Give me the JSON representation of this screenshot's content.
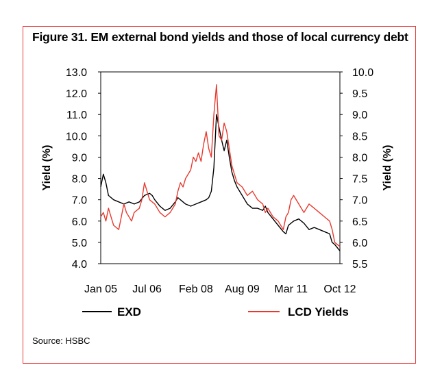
{
  "figure": {
    "title": "Figure 31.  EM external bond yields and those of local currency debt",
    "source": "Source: HSBC"
  },
  "chart_data": {
    "type": "line",
    "ylabel_left": "Yield (%)",
    "ylabel_right": "Yield (%)",
    "ylim_left": [
      4.0,
      13.0
    ],
    "ylim_right": [
      5.5,
      10.0
    ],
    "yticks_left": [
      "13.0",
      "12.0",
      "11.0",
      "10.0",
      "9.0",
      "8.0",
      "7.0",
      "6.0",
      "5.0",
      "4.0"
    ],
    "yticks_right": [
      "10.0",
      "9.5",
      "9.0",
      "8.5",
      "8.0",
      "7.5",
      "7.0",
      "6.5",
      "6.0",
      "5.5"
    ],
    "xlim": [
      "2005-01",
      "2012-10"
    ],
    "xticks": [
      {
        "label": "Jan 05",
        "date": "2005-01"
      },
      {
        "label": "Jul 06",
        "date": "2006-07"
      },
      {
        "label": "Feb 08",
        "date": "2008-02"
      },
      {
        "label": "Aug 09",
        "date": "2009-08"
      },
      {
        "label": "Mar 11",
        "date": "2011-03"
      },
      {
        "label": "Oct 12",
        "date": "2012-10"
      }
    ],
    "grid": false,
    "legend": "bottom",
    "series": [
      {
        "name": "EXD",
        "axis": "left",
        "color": "#000000",
        "points": [
          [
            "2005-01",
            7.6
          ],
          [
            "2005-02",
            8.2
          ],
          [
            "2005-03",
            7.8
          ],
          [
            "2005-04",
            7.2
          ],
          [
            "2005-06",
            7.0
          ],
          [
            "2005-08",
            6.9
          ],
          [
            "2005-10",
            6.8
          ],
          [
            "2005-12",
            6.9
          ],
          [
            "2006-02",
            6.8
          ],
          [
            "2006-04",
            6.9
          ],
          [
            "2006-06",
            7.2
          ],
          [
            "2006-08",
            7.3
          ],
          [
            "2006-09",
            7.2
          ],
          [
            "2006-10",
            7.0
          ],
          [
            "2006-12",
            6.7
          ],
          [
            "2007-02",
            6.5
          ],
          [
            "2007-04",
            6.6
          ],
          [
            "2007-06",
            6.9
          ],
          [
            "2007-07",
            7.1
          ],
          [
            "2007-08",
            7.0
          ],
          [
            "2007-10",
            6.8
          ],
          [
            "2007-12",
            6.7
          ],
          [
            "2008-02",
            6.8
          ],
          [
            "2008-04",
            6.9
          ],
          [
            "2008-06",
            7.0
          ],
          [
            "2008-07",
            7.1
          ],
          [
            "2008-08",
            7.4
          ],
          [
            "2008-09",
            8.5
          ],
          [
            "2008-10",
            11.0
          ],
          [
            "2008-11",
            10.4
          ],
          [
            "2008-12",
            9.8
          ],
          [
            "2009-01",
            9.3
          ],
          [
            "2009-02",
            9.8
          ],
          [
            "2009-03",
            9.0
          ],
          [
            "2009-04",
            8.3
          ],
          [
            "2009-05",
            7.9
          ],
          [
            "2009-06",
            7.6
          ],
          [
            "2009-08",
            7.2
          ],
          [
            "2009-10",
            6.8
          ],
          [
            "2009-12",
            6.6
          ],
          [
            "2010-02",
            6.6
          ],
          [
            "2010-04",
            6.5
          ],
          [
            "2010-05",
            6.7
          ],
          [
            "2010-06",
            6.4
          ],
          [
            "2010-08",
            6.1
          ],
          [
            "2010-10",
            5.8
          ],
          [
            "2010-12",
            5.5
          ],
          [
            "2011-01",
            5.4
          ],
          [
            "2011-02",
            5.8
          ],
          [
            "2011-04",
            6.0
          ],
          [
            "2011-06",
            6.1
          ],
          [
            "2011-08",
            5.9
          ],
          [
            "2011-10",
            5.6
          ],
          [
            "2011-12",
            5.7
          ],
          [
            "2012-02",
            5.6
          ],
          [
            "2012-04",
            5.5
          ],
          [
            "2012-06",
            5.4
          ],
          [
            "2012-07",
            5.0
          ],
          [
            "2012-08",
            4.9
          ],
          [
            "2012-10",
            4.6
          ]
        ]
      },
      {
        "name": "LCD Yields",
        "axis": "right",
        "color": "#e8392e",
        "points": [
          [
            "2005-01",
            6.6
          ],
          [
            "2005-02",
            6.7
          ],
          [
            "2005-03",
            6.5
          ],
          [
            "2005-04",
            6.8
          ],
          [
            "2005-05",
            6.6
          ],
          [
            "2005-06",
            6.4
          ],
          [
            "2005-08",
            6.3
          ],
          [
            "2005-09",
            6.6
          ],
          [
            "2005-10",
            6.9
          ],
          [
            "2005-11",
            6.7
          ],
          [
            "2006-01",
            6.5
          ],
          [
            "2006-02",
            6.7
          ],
          [
            "2006-04",
            6.8
          ],
          [
            "2006-05",
            7.0
          ],
          [
            "2006-06",
            7.4
          ],
          [
            "2006-07",
            7.2
          ],
          [
            "2006-08",
            7.0
          ],
          [
            "2006-10",
            6.9
          ],
          [
            "2006-12",
            6.7
          ],
          [
            "2007-02",
            6.6
          ],
          [
            "2007-04",
            6.7
          ],
          [
            "2007-06",
            6.9
          ],
          [
            "2007-07",
            7.2
          ],
          [
            "2007-08",
            7.4
          ],
          [
            "2007-09",
            7.3
          ],
          [
            "2007-10",
            7.5
          ],
          [
            "2007-12",
            7.7
          ],
          [
            "2008-01",
            8.0
          ],
          [
            "2008-02",
            7.9
          ],
          [
            "2008-03",
            8.1
          ],
          [
            "2008-04",
            7.9
          ],
          [
            "2008-05",
            8.3
          ],
          [
            "2008-06",
            8.6
          ],
          [
            "2008-07",
            8.2
          ],
          [
            "2008-08",
            8.0
          ],
          [
            "2008-09",
            9.0
          ],
          [
            "2008-10",
            9.7
          ],
          [
            "2008-11",
            8.5
          ],
          [
            "2008-12",
            8.4
          ],
          [
            "2009-01",
            8.8
          ],
          [
            "2009-02",
            8.6
          ],
          [
            "2009-03",
            8.2
          ],
          [
            "2009-04",
            7.8
          ],
          [
            "2009-05",
            7.6
          ],
          [
            "2009-06",
            7.4
          ],
          [
            "2009-08",
            7.3
          ],
          [
            "2009-10",
            7.1
          ],
          [
            "2009-12",
            7.2
          ],
          [
            "2010-02",
            7.0
          ],
          [
            "2010-04",
            6.9
          ],
          [
            "2010-05",
            6.7
          ],
          [
            "2010-06",
            6.8
          ],
          [
            "2010-08",
            6.6
          ],
          [
            "2010-10",
            6.5
          ],
          [
            "2010-12",
            6.3
          ],
          [
            "2011-01",
            6.6
          ],
          [
            "2011-02",
            6.7
          ],
          [
            "2011-03",
            7.0
          ],
          [
            "2011-04",
            7.1
          ],
          [
            "2011-06",
            6.9
          ],
          [
            "2011-08",
            6.7
          ],
          [
            "2011-10",
            6.9
          ],
          [
            "2011-12",
            6.8
          ],
          [
            "2012-02",
            6.7
          ],
          [
            "2012-04",
            6.6
          ],
          [
            "2012-06",
            6.5
          ],
          [
            "2012-07",
            6.3
          ],
          [
            "2012-08",
            6.0
          ],
          [
            "2012-10",
            5.9
          ]
        ]
      }
    ]
  }
}
